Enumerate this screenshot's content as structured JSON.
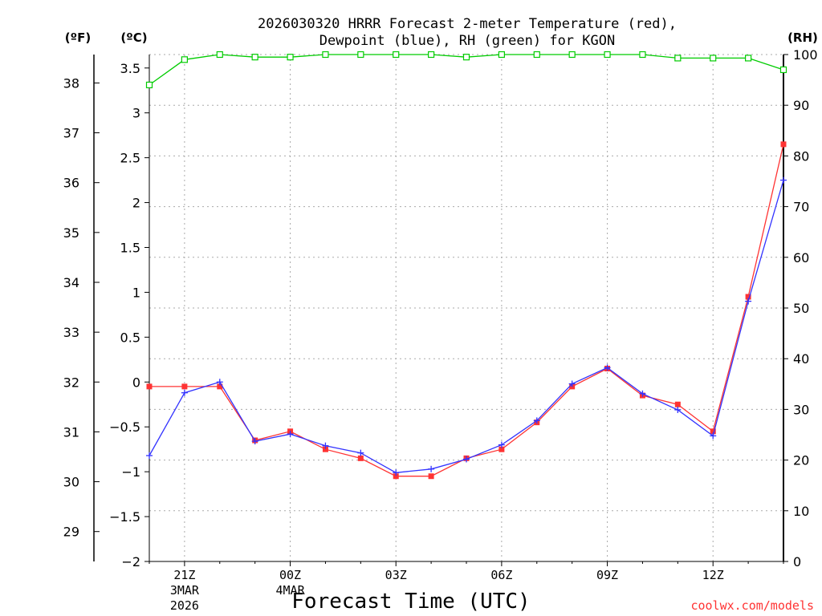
{
  "chart_data": {
    "type": "line",
    "title_line1": "2026030320 HRRR Forecast 2-meter Temperature (red),",
    "title_line2": "Dewpoint (blue), RH (green) for KGON",
    "xlabel": "Forecast Time (UTC)",
    "credit": "coolwx.com/models",
    "left_outer_unit": "(ºF)",
    "left_inner_unit": "(ºC)",
    "right_unit": "(RH)",
    "hours": [
      20,
      21,
      22,
      23,
      24,
      25,
      26,
      27,
      28,
      29,
      30,
      31,
      32,
      33,
      34,
      35,
      36,
      37,
      38
    ],
    "x_range": [
      20,
      38
    ],
    "celsius_range": [
      -2,
      3.65
    ],
    "rh_range": [
      0,
      100
    ],
    "x_ticks": [
      {
        "hour": 21,
        "label": "21Z",
        "sub1": "3MAR",
        "sub2": "2026"
      },
      {
        "hour": 24,
        "label": "00Z",
        "sub1": "4MAR",
        "sub2": ""
      },
      {
        "hour": 27,
        "label": "03Z",
        "sub1": "",
        "sub2": ""
      },
      {
        "hour": 30,
        "label": "06Z",
        "sub1": "",
        "sub2": ""
      },
      {
        "hour": 33,
        "label": "09Z",
        "sub1": "",
        "sub2": ""
      },
      {
        "hour": 36,
        "label": "12Z",
        "sub1": "",
        "sub2": ""
      }
    ],
    "celsius_ticks": [
      "−2",
      "−1.5",
      "−1",
      "−0.5",
      "0",
      "0.5",
      "1",
      "1.5",
      "2",
      "2.5",
      "3",
      "3.5"
    ],
    "celsius_tick_values": [
      -2,
      -1.5,
      -1,
      -0.5,
      0,
      0.5,
      1,
      1.5,
      2,
      2.5,
      3,
      3.5
    ],
    "fahrenheit_ticks": [
      "29",
      "30",
      "31",
      "32",
      "33",
      "34",
      "35",
      "36",
      "37",
      "38"
    ],
    "fahrenheit_tick_values": [
      29,
      30,
      31,
      32,
      33,
      34,
      35,
      36,
      37,
      38
    ],
    "rh_ticks": [
      "0",
      "10",
      "20",
      "30",
      "40",
      "50",
      "60",
      "70",
      "80",
      "90",
      "100"
    ],
    "rh_tick_values": [
      0,
      10,
      20,
      30,
      40,
      50,
      60,
      70,
      80,
      90,
      100
    ],
    "series": [
      {
        "name": "Temperature",
        "unit": "C",
        "color": "#ff3333",
        "values": [
          -0.05,
          -0.05,
          -0.05,
          -0.65,
          -0.55,
          -0.75,
          -0.85,
          -1.05,
          -1.05,
          -0.85,
          -0.75,
          -0.45,
          -0.05,
          0.15,
          -0.15,
          -0.25,
          -0.55,
          0.95,
          2.65
        ]
      },
      {
        "name": "Dewpoint",
        "unit": "C",
        "color": "#3333ff",
        "values": [
          -0.82,
          -0.12,
          0.0,
          -0.66,
          -0.58,
          -0.71,
          -0.79,
          -1.01,
          -0.97,
          -0.86,
          -0.7,
          -0.43,
          -0.02,
          0.16,
          -0.13,
          -0.31,
          -0.6,
          0.9,
          2.25
        ]
      },
      {
        "name": "RH",
        "unit": "%",
        "color": "#00cc00",
        "values": [
          94,
          99,
          100,
          99.5,
          99.5,
          100,
          100,
          100,
          100,
          99.5,
          100,
          100,
          100,
          100,
          100,
          99.3,
          99.3,
          99.3,
          97
        ]
      }
    ]
  }
}
